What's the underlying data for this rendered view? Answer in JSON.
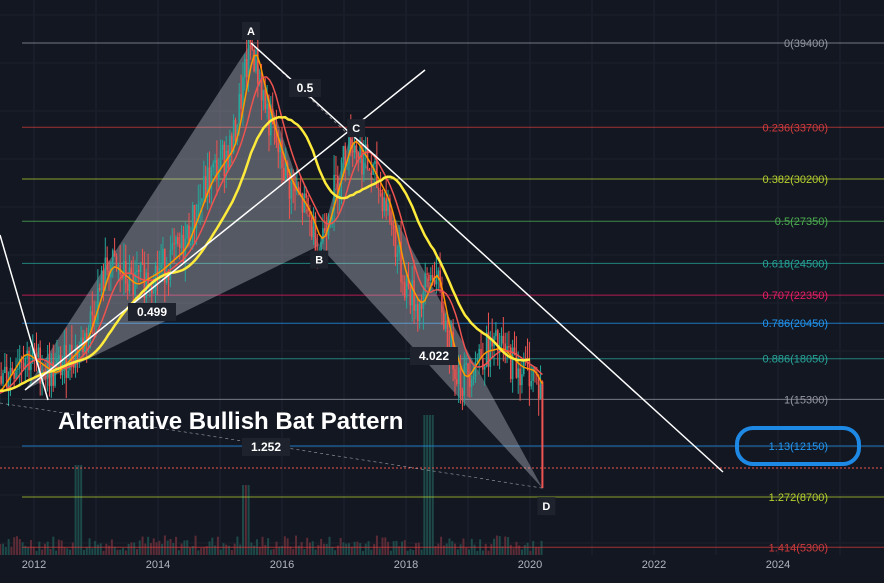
{
  "chart_data": {
    "type": "line",
    "title": "Alternative Bullish Bat Pattern",
    "x_axis": {
      "ticks": [
        "2012",
        "2014",
        "2016",
        "2018",
        "2020",
        "2022",
        "2024"
      ]
    },
    "fib_levels": [
      {
        "ratio": "0",
        "price": "39400",
        "label": "0(39400)",
        "color": "#9598a1"
      },
      {
        "ratio": "0.236",
        "price": "33700",
        "label": "0.236(33700)",
        "color": "#d23b3b"
      },
      {
        "ratio": "0.382",
        "price": "30200",
        "label": "0.382(30200)",
        "color": "#b6cf2e"
      },
      {
        "ratio": "0.5",
        "price": "27350",
        "label": "0.5(27350)",
        "color": "#4caf50"
      },
      {
        "ratio": "0.618",
        "price": "24500",
        "label": "0.618(24500)",
        "color": "#26a69a"
      },
      {
        "ratio": "0.707",
        "price": "22350",
        "label": "0.707(22350)",
        "color": "#e91e63"
      },
      {
        "ratio": "0.786",
        "price": "20450",
        "label": "0.786(20450)",
        "color": "#2196f3"
      },
      {
        "ratio": "0.886",
        "price": "18050",
        "label": "0.886(18050)",
        "color": "#26a69a"
      },
      {
        "ratio": "1",
        "price": "15300",
        "label": "1(15300)",
        "color": "#9598a1"
      },
      {
        "ratio": "1.13",
        "price": "12150",
        "label": "1.13(12150)",
        "color": "#2196f3"
      },
      {
        "ratio": "1.272",
        "price": "8700",
        "label": "1.272(8700)",
        "color": "#b6cf2e"
      },
      {
        "ratio": "1.414",
        "price": "5300",
        "label": "1.414(5300)",
        "color": "#d23b3b"
      }
    ],
    "pattern_points": [
      {
        "label": "A",
        "year": 2015.5,
        "price": 39400
      },
      {
        "label": "B",
        "year": 2016.6,
        "price": 25700
      },
      {
        "label": "C",
        "year": 2017.1,
        "price": 33100
      },
      {
        "label": "D",
        "year": 2020.2,
        "price": 9300
      }
    ],
    "pattern_ratios": [
      "0.5",
      "0.499",
      "4.022",
      "1.252"
    ],
    "highlight": {
      "level": "1.13(12150)",
      "color": "#1e88e5"
    },
    "colors": {
      "background": "#131722",
      "candles": "#26a69a",
      "ma_fast": "#ff9800",
      "ma_mid": "#ef5350",
      "ma_slow": "#ffeb3b",
      "triangles": "#d1d4dc",
      "trendline": "#ffffff"
    }
  }
}
